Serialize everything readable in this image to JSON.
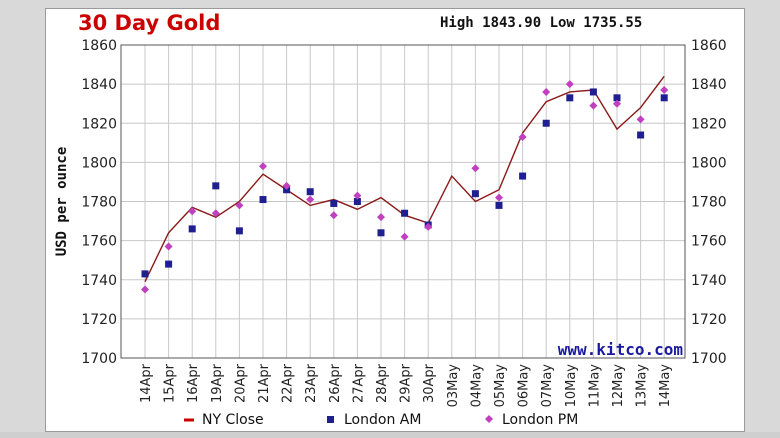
{
  "header": {
    "title": "30 Day Gold",
    "high_low": "High 1843.90 Low 1735.55"
  },
  "colors": {
    "title": "#cc0000",
    "ny_close": "#8b1a1a",
    "london_am": "#1f1f8f",
    "london_pm": "#c040c0",
    "watermark": "#1a1aa0",
    "grid": "#c8c8c8"
  },
  "chart_data": {
    "type": "line",
    "title": "30 Day Gold",
    "ylabel": "USD per ounce",
    "xlabel": "",
    "watermark": "www.kitco.com",
    "ylim": [
      1700,
      1860
    ],
    "yticks": [
      1700,
      1720,
      1740,
      1760,
      1780,
      1800,
      1820,
      1840,
      1860
    ],
    "grid": true,
    "legend_position": "bottom",
    "categories": [
      "14Apr",
      "15Apr",
      "16Apr",
      "19Apr",
      "20Apr",
      "21Apr",
      "22Apr",
      "23Apr",
      "26Apr",
      "27Apr",
      "28Apr",
      "29Apr",
      "30Apr",
      "03May",
      "04May",
      "05May",
      "06May",
      "07May",
      "10May",
      "11May",
      "12May",
      "13May",
      "14May"
    ],
    "series": [
      {
        "name": "NY Close",
        "style": "line",
        "values": [
          1739,
          1764,
          1777,
          1772,
          1780,
          1794,
          1786,
          1778,
          1781,
          1776,
          1782,
          1773,
          1769,
          1793,
          1780,
          1786,
          1815,
          1831,
          1836,
          1837,
          1817,
          1828,
          1844
        ]
      },
      {
        "name": "London AM",
        "style": "square",
        "values": [
          1743,
          1748,
          1766,
          1788,
          1765,
          1781,
          1786,
          1785,
          1779,
          1780,
          1764,
          1774,
          1768,
          null,
          1784,
          1778,
          1793,
          1820,
          1833,
          1836,
          1833,
          1814,
          1833
        ]
      },
      {
        "name": "London PM",
        "style": "diamond",
        "values": [
          1735,
          1757,
          1775,
          1774,
          1778,
          1798,
          1788,
          1781,
          1773,
          1783,
          1772,
          1762,
          1767,
          null,
          1797,
          1782,
          1813,
          1836,
          1840,
          1829,
          1830,
          1822,
          1837
        ]
      }
    ]
  }
}
